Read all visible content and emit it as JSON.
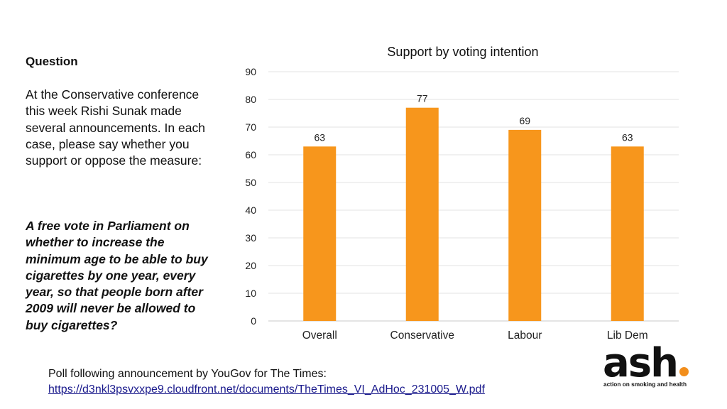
{
  "question": {
    "heading": "Question",
    "body": "At the Conservative conference this week Rishi Sunak made several announcements. In each case, please say whether you support or oppose the measure:",
    "measure": "A free vote in Parliament on whether to increase the minimum age to be able to buy cigarettes by one year, every year, so that people born after 2009 will never be allowed to buy cigarettes?"
  },
  "chart_data": {
    "type": "bar",
    "title": "Support by voting intention",
    "categories": [
      "Overall",
      "Conservative",
      "Labour",
      "Lib Dem"
    ],
    "values": [
      63,
      77,
      69,
      63
    ],
    "ylim": [
      0,
      90
    ],
    "yticks": [
      0,
      10,
      20,
      30,
      40,
      50,
      60,
      70,
      80,
      90
    ],
    "xlabel": "",
    "ylabel": "",
    "grid": true,
    "bar_color": "#f7961c",
    "data_labels": true
  },
  "footer": {
    "source": "Poll following announcement by YouGov for The Times:",
    "link": "https://d3nkl3psvxxpe9.cloudfront.net/documents/TheTimes_VI_AdHoc_231005_W.pdf"
  },
  "logo": {
    "word": "ash",
    "tagline": "action on smoking and health",
    "accent_color": "#f28e1c"
  }
}
